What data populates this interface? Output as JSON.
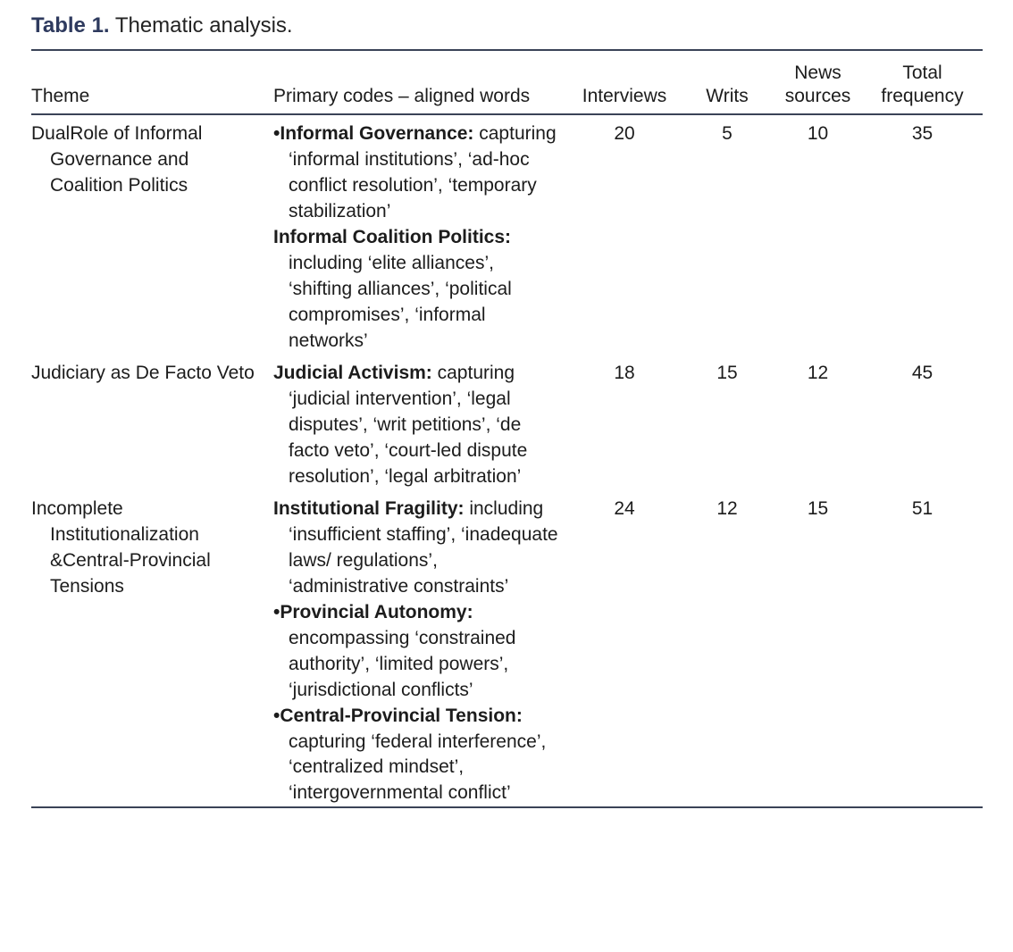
{
  "caption": {
    "label": "Table 1.",
    "text": "Thematic analysis."
  },
  "columns": [
    {
      "key": "theme",
      "label": "Theme",
      "align": "left"
    },
    {
      "key": "codes",
      "label": "Primary codes – aligned words",
      "align": "left"
    },
    {
      "key": "interviews",
      "label": "Interviews",
      "align": "center"
    },
    {
      "key": "writs",
      "label": "Writs",
      "align": "center"
    },
    {
      "key": "news_sources",
      "label": "News sources",
      "align": "center"
    },
    {
      "key": "total_frequency",
      "label": "Total frequency",
      "align": "center"
    }
  ],
  "rows": [
    {
      "theme": "DualRole of Informal Governance and Coalition Politics",
      "codes": [
        {
          "bullet": "•",
          "head": "Informal Governance:",
          "body": "capturing ‘informal institutions’, ‘ad-hoc conflict resolution’, ‘temporary stabilization’"
        },
        {
          "bullet": "",
          "head": "Informal Coalition Politics:",
          "body": "including ‘elite alliances’, ‘shifting alliances’, ‘political compromises’, ‘informal networks’"
        }
      ],
      "interviews": "20",
      "writs": "5",
      "news_sources": "10",
      "total_frequency": "35"
    },
    {
      "theme": "Judiciary as De Facto Veto",
      "codes": [
        {
          "bullet": "",
          "head": "Judicial Activism:",
          "body": "capturing ‘judicial intervention’, ‘legal disputes’, ‘writ petitions’, ‘de facto veto’, ‘court-led dispute resolution’, ‘legal arbitration’"
        }
      ],
      "interviews": "18",
      "writs": "15",
      "news_sources": "12",
      "total_frequency": "45"
    },
    {
      "theme": "Incomplete Institutionalization &Central-Provincial Tensions",
      "codes": [
        {
          "bullet": "",
          "head": "Institutional Fragility:",
          "body": "including ‘insufficient staffing’, ‘inadequate laws/ regulations’, ‘administrative constraints’"
        },
        {
          "bullet": "•",
          "head": "Provincial Autonomy:",
          "body": "encompassing ‘constrained authority’, ‘limited powers’, ‘jurisdictional conflicts’"
        },
        {
          "bullet": "•",
          "head": "Central-Provincial Tension:",
          "body": "capturing ‘federal interference’, ‘centralized mindset’, ‘intergovernmental conflict’"
        }
      ],
      "interviews": "24",
      "writs": "12",
      "news_sources": "15",
      "total_frequency": "51"
    }
  ],
  "colors": {
    "accent": "#2e3a5e",
    "rule": "#3a4357",
    "text": "#1c1c1c"
  }
}
